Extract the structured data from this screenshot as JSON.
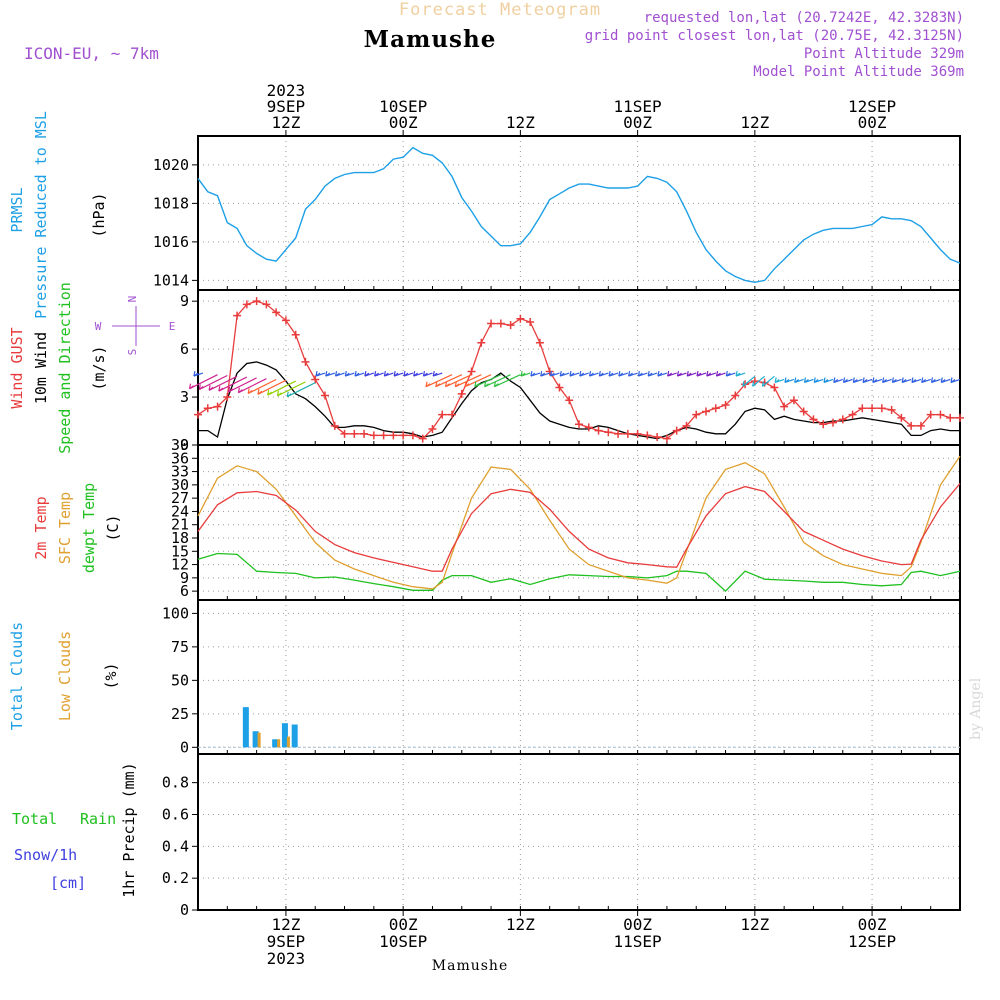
{
  "header": {
    "title": "Forecast Meteogram",
    "station": "Mamushe",
    "model": "ICON-EU, ~ 7km",
    "requested": "requested lon,lat (20.7242E, 42.3283N)",
    "gridpoint": "grid point closest lon,lat (20.75E, 42.3125N)",
    "point_alt": "Point Altitude 329m",
    "model_alt": "Model Point Altitude 369m"
  },
  "footer": {
    "station": "Mamushe"
  },
  "watermark": "by Angel",
  "time_axis": {
    "start_hour": 3,
    "end_hour": 81,
    "top_ticks": [
      {
        "hour": 12,
        "lines": [
          "2023",
          "9SEP",
          "12Z"
        ]
      },
      {
        "hour": 24,
        "lines": [
          "10SEP",
          "00Z"
        ]
      },
      {
        "hour": 36,
        "lines": [
          "12Z"
        ]
      },
      {
        "hour": 48,
        "lines": [
          "11SEP",
          "00Z"
        ]
      },
      {
        "hour": 60,
        "lines": [
          "12Z"
        ]
      },
      {
        "hour": 72,
        "lines": [
          "12SEP",
          "00Z"
        ]
      }
    ],
    "bottom_ticks": [
      {
        "hour": 12,
        "lines": [
          "12Z",
          "9SEP",
          "2023"
        ]
      },
      {
        "hour": 24,
        "lines": [
          "00Z",
          "10SEP"
        ]
      },
      {
        "hour": 36,
        "lines": [
          "12Z"
        ]
      },
      {
        "hour": 48,
        "lines": [
          "00Z",
          "11SEP"
        ]
      },
      {
        "hour": 60,
        "lines": [
          "12Z"
        ]
      },
      {
        "hour": 72,
        "lines": [
          "00Z",
          "12SEP"
        ]
      }
    ]
  },
  "colors": {
    "pressure": "#1ea0e6",
    "gust": "#e83c3c",
    "wind": "#000000",
    "t2m": "#e83c3c",
    "sfc": "#e0a030",
    "dewpt": "#20c020",
    "total_clouds": "#1ea0e6",
    "low_clouds": "#e0a030",
    "rain": "#20c020",
    "snow": "#4040e0",
    "compass": "#a050d0"
  },
  "panels": {
    "pressure": {
      "labels": [
        {
          "text": "PRMSL",
          "color": "#1ea0e6"
        },
        {
          "text": "Pressure Reduced to MSL",
          "color": "#1ea0e6"
        },
        {
          "text": "(hPa)",
          "color": "#000000"
        }
      ]
    },
    "wind": {
      "labels": [
        {
          "text": "Wind GUST",
          "color": "#e83c3c"
        },
        {
          "text": "10m Wind",
          "color": "#000000"
        },
        {
          "text": "Speed and Direction",
          "color": "#20c020"
        },
        {
          "text": "(m/s)",
          "color": "#000000"
        }
      ],
      "compass": {
        "n": "N",
        "s": "S",
        "w": "W",
        "e": "E"
      }
    },
    "temp": {
      "labels": [
        {
          "text": "2m Temp",
          "color": "#e83c3c"
        },
        {
          "text": "SFC Temp",
          "color": "#e0a030"
        },
        {
          "text": "dewpt Temp",
          "color": "#20c020"
        },
        {
          "text": "(C)",
          "color": "#000000"
        }
      ]
    },
    "clouds": {
      "labels": [
        {
          "text": "Total Clouds",
          "color": "#1ea0e6"
        },
        {
          "text": "Low Clouds",
          "color": "#e0a030"
        },
        {
          "text": "(%)",
          "color": "#000000"
        }
      ]
    },
    "precip": {
      "labels": [
        {
          "text": "Total",
          "color": "#20c020"
        },
        {
          "text": "Rain",
          "color": "#20c020"
        },
        {
          "text": "Snow/1h",
          "color": "#4040e0"
        },
        {
          "text": "[cm]",
          "color": "#4040e0"
        },
        {
          "text": "1hr Precip (mm)",
          "color": "#000000"
        }
      ]
    }
  },
  "chart_data": [
    {
      "type": "line",
      "panel": "pressure",
      "title": "PRMSL Pressure Reduced to MSL",
      "ylabel": "(hPa)",
      "ylim": [
        1013.5,
        1021.5
      ],
      "yticks": [
        1014,
        1016,
        1018,
        1020
      ],
      "x": [
        3,
        4,
        5,
        6,
        7,
        8,
        9,
        10,
        11,
        12,
        13,
        14,
        15,
        16,
        17,
        18,
        19,
        20,
        21,
        22,
        23,
        24,
        25,
        26,
        27,
        28,
        29,
        30,
        31,
        32,
        33,
        34,
        35,
        36,
        37,
        38,
        39,
        40,
        41,
        42,
        43,
        44,
        45,
        46,
        47,
        48,
        49,
        50,
        51,
        52,
        53,
        54,
        55,
        56,
        57,
        58,
        59,
        60,
        61,
        62,
        63,
        64,
        65,
        66,
        67,
        68,
        69,
        70,
        71,
        72,
        73,
        74,
        75,
        76,
        77,
        78,
        79,
        80,
        81
      ],
      "series": [
        {
          "values": [
            1019.3,
            1018.6,
            1018.4,
            1017,
            1016.7,
            1015.8,
            1015.4,
            1015.1,
            1015,
            1015.6,
            1016.2,
            1017.7,
            1018.2,
            1018.9,
            1019.3,
            1019.5,
            1019.6,
            1019.6,
            1019.6,
            1019.8,
            1020.3,
            1020.4,
            1020.9,
            1020.6,
            1020.5,
            1020.1,
            1019.4,
            1018.3,
            1017.6,
            1016.8,
            1016.3,
            1015.8,
            1015.8,
            1015.9,
            1016.5,
            1017.3,
            1018.2,
            1018.5,
            1018.8,
            1019.0,
            1019.0,
            1018.9,
            1018.8,
            1018.8,
            1018.8,
            1018.9,
            1019.4,
            1019.3,
            1019.1,
            1018.6,
            1017.6,
            1016.5,
            1015.6,
            1015.0,
            1014.5,
            1014.2,
            1014.0,
            1013.9,
            1014.0,
            1014.6,
            1015.1,
            1015.6,
            1016.1,
            1016.4,
            1016.6,
            1016.7,
            1016.7,
            1016.7,
            1016.8,
            1016.9,
            1017.3,
            1017.2,
            1017.2,
            1017.1,
            1016.8,
            1016.2,
            1015.6,
            1015.1,
            1014.9
          ]
        }
      ]
    },
    {
      "type": "line",
      "panel": "wind",
      "title": "Wind GUST / 10m Wind Speed and Direction",
      "ylabel": "(m/s)",
      "ylim": [
        0,
        9.7
      ],
      "yticks": [
        0,
        3,
        6,
        9
      ],
      "x": [
        3,
        4,
        5,
        6,
        7,
        8,
        9,
        10,
        11,
        12,
        13,
        14,
        15,
        16,
        17,
        18,
        19,
        20,
        21,
        22,
        23,
        24,
        25,
        26,
        27,
        28,
        29,
        30,
        31,
        32,
        33,
        34,
        35,
        36,
        37,
        38,
        39,
        40,
        41,
        42,
        43,
        44,
        45,
        46,
        47,
        48,
        49,
        50,
        51,
        52,
        53,
        54,
        55,
        56,
        57,
        58,
        59,
        60,
        61,
        62,
        63,
        64,
        65,
        66,
        67,
        68,
        69,
        70,
        71,
        72,
        73,
        74,
        75,
        76,
        77,
        78,
        79,
        80,
        81
      ],
      "series": [
        {
          "name": "Wind GUST",
          "values": [
            1.9,
            2.3,
            2.4,
            3.0,
            8.1,
            8.8,
            9.0,
            8.8,
            8.3,
            7.8,
            6.9,
            5.2,
            4.1,
            3.1,
            1.2,
            0.7,
            0.7,
            0.7,
            0.6,
            0.6,
            0.6,
            0.6,
            0.6,
            0.4,
            1.0,
            1.9,
            1.9,
            3.2,
            4.6,
            6.4,
            7.6,
            7.6,
            7.5,
            7.9,
            7.7,
            6.4,
            4.6,
            3.6,
            2.8,
            1.3,
            1.1,
            0.9,
            0.8,
            0.7,
            0.7,
            0.7,
            0.6,
            0.5,
            0.4,
            0.9,
            1.2,
            1.9,
            2.1,
            2.3,
            2.5,
            3.1,
            3.8,
            4.0,
            3.9,
            3.6,
            2.4,
            2.8,
            2.1,
            1.6,
            1.3,
            1.4,
            1.6,
            1.9,
            2.3,
            2.3,
            2.3,
            2.2,
            1.7,
            1.2,
            1.2,
            1.9,
            1.9,
            1.7,
            1.7
          ]
        },
        {
          "name": "10m Wind",
          "values": [
            0.9,
            0.9,
            0.5,
            2.9,
            4.5,
            5.1,
            5.2,
            5.0,
            4.7,
            4.0,
            3.2,
            2.9,
            2.4,
            1.8,
            1.1,
            1.1,
            1.2,
            1.2,
            1.1,
            0.9,
            0.8,
            0.8,
            0.7,
            0.5,
            0.6,
            0.8,
            1.7,
            2.6,
            3.4,
            3.9,
            4.1,
            4.5,
            4.0,
            3.6,
            2.8,
            2.0,
            1.5,
            1.3,
            1.1,
            1.0,
            1.0,
            1.2,
            1.1,
            0.9,
            0.7,
            0.6,
            0.5,
            0.4,
            0.6,
            0.9,
            1.1,
            1.0,
            0.8,
            0.7,
            0.7,
            1.3,
            2.1,
            2.3,
            2.2,
            1.6,
            1.8,
            1.6,
            1.5,
            1.4,
            1.4,
            1.5,
            1.5,
            1.6,
            1.7,
            1.6,
            1.5,
            1.4,
            1.3,
            0.6,
            0.6,
            0.9,
            1.0,
            0.9,
            0.9
          ]
        }
      ],
      "barbs": {
        "x": [
          3.5,
          5,
          6,
          7,
          8,
          9,
          10,
          11,
          12,
          13,
          14,
          15,
          16,
          17,
          18,
          19,
          20,
          21,
          22,
          23,
          24,
          25,
          26,
          27,
          28,
          29,
          30,
          31,
          32,
          33,
          34,
          35,
          36,
          37,
          38,
          39,
          40,
          41,
          42,
          43,
          44,
          45,
          46,
          47,
          48,
          49,
          50,
          51,
          52,
          53,
          54,
          55,
          56,
          57,
          58,
          59,
          60,
          61,
          62,
          63,
          64,
          65,
          66,
          67,
          68,
          69,
          70,
          71,
          72,
          73,
          74,
          75,
          76,
          77,
          78,
          79,
          80,
          81
        ],
        "note": "wind direction arrows along the speed band"
      }
    },
    {
      "type": "line",
      "panel": "temp",
      "title": "2m Temp / SFC Temp / dewpt Temp",
      "ylabel": "(C)",
      "ylim": [
        4,
        39
      ],
      "yticks": [
        6,
        9,
        12,
        15,
        18,
        21,
        24,
        27,
        30,
        33,
        36,
        39
      ],
      "x": [
        3,
        5,
        7,
        9,
        11,
        13,
        15,
        17,
        19,
        21,
        23,
        25,
        27,
        28,
        29,
        31,
        33,
        35,
        37,
        39,
        41,
        43,
        45,
        47,
        49,
        51,
        52,
        53,
        55,
        57,
        59,
        61,
        63,
        65,
        67,
        69,
        71,
        73,
        75,
        76,
        77,
        79,
        81
      ],
      "series": [
        {
          "name": "2m Temp",
          "values": [
            19.5,
            25.5,
            28.2,
            28.5,
            27.6,
            24.3,
            19.5,
            16.5,
            14.7,
            13.5,
            12.5,
            11.5,
            10.5,
            10.5,
            15.5,
            23.5,
            28.0,
            29.0,
            28.3,
            24.5,
            19.5,
            15.5,
            13.5,
            12.4,
            12.0,
            11.5,
            11.4,
            15.5,
            23.0,
            28.0,
            29.6,
            28.5,
            24.0,
            19.5,
            17.5,
            15.5,
            14.0,
            12.8,
            12.0,
            12.1,
            17.5,
            25.0,
            30.3
          ]
        },
        {
          "name": "SFC Temp",
          "values": [
            23.0,
            31.5,
            34.3,
            33.0,
            29.0,
            23.0,
            17.0,
            13.0,
            11.0,
            9.5,
            8.0,
            7.0,
            6.5,
            8.0,
            14.5,
            27.0,
            34.0,
            33.5,
            29.0,
            22.0,
            15.5,
            12.0,
            10.5,
            9.0,
            8.5,
            7.8,
            9.0,
            15.0,
            27.0,
            33.5,
            35.0,
            32.5,
            25.0,
            17.0,
            14.0,
            12.0,
            11.0,
            10.0,
            9.5,
            11.5,
            17.0,
            30.0,
            36.5
          ]
        },
        {
          "name": "dewpt Temp",
          "values": [
            13.2,
            14.5,
            14.3,
            10.5,
            10.2,
            10.0,
            9.0,
            9.2,
            8.5,
            7.7,
            7.0,
            6.2,
            6.2,
            8.5,
            9.5,
            9.5,
            8.0,
            8.8,
            7.5,
            8.8,
            9.7,
            9.5,
            9.3,
            9.3,
            9.0,
            9.5,
            10.5,
            10.5,
            10.0,
            6.0,
            10.5,
            8.7,
            8.5,
            8.3,
            8.0,
            8.0,
            7.5,
            7.2,
            7.5,
            10.2,
            10.5,
            9.5,
            10.5
          ]
        }
      ]
    },
    {
      "type": "bar",
      "panel": "clouds",
      "title": "Total Clouds / Low Clouds",
      "ylabel": "(%)",
      "ylim": [
        -5,
        110
      ],
      "yticks": [
        0,
        25,
        50,
        75,
        100
      ],
      "series": [
        {
          "name": "Total Clouds",
          "x": [
            8,
            9,
            11,
            12,
            13,
            14
          ],
          "values": [
            30,
            12,
            6,
            18,
            17,
            0
          ]
        },
        {
          "name": "Low Clouds",
          "x": [
            9,
            11,
            12
          ],
          "values": [
            11,
            6,
            8
          ]
        }
      ]
    },
    {
      "type": "bar",
      "panel": "precip",
      "title": "1hr Precip (mm)",
      "ylabel": "1hr Precip (mm)",
      "ylim": [
        0,
        0.98
      ],
      "yticks": [
        0,
        0.2,
        0.4,
        0.6,
        0.8
      ],
      "ytick_labels": [
        "0",
        "0.2",
        "0.4",
        "0.6",
        "0.8"
      ],
      "series": [
        {
          "name": "Total Rain",
          "x": [],
          "values": []
        },
        {
          "name": "Snow/1h",
          "x": [],
          "values": []
        }
      ]
    }
  ]
}
